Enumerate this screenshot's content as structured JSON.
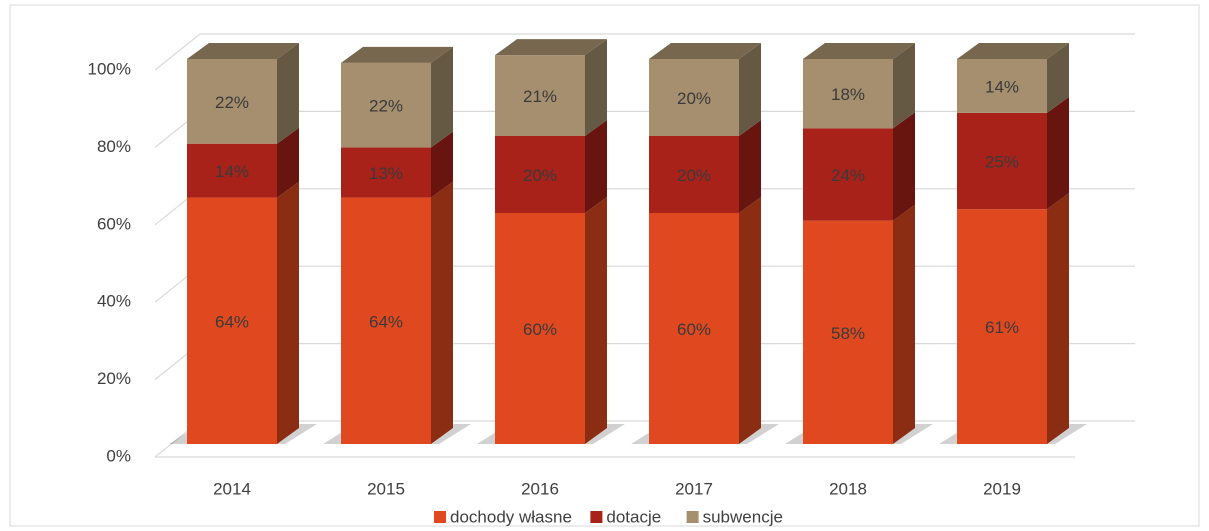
{
  "chart_data": {
    "type": "bar",
    "stacked": true,
    "categories": [
      "2014",
      "2015",
      "2016",
      "2017",
      "2018",
      "2019"
    ],
    "series": [
      {
        "name": "dochody własne",
        "color": "#e0491f",
        "values": [
          64,
          64,
          60,
          60,
          58,
          61
        ],
        "value_labels": [
          "64%",
          "64%",
          "60%",
          "60%",
          "58%",
          "61%"
        ]
      },
      {
        "name": "dotacje",
        "color": "#a82219",
        "values": [
          14,
          13,
          20,
          20,
          24,
          25
        ],
        "value_labels": [
          "14%",
          "13%",
          "20%",
          "20%",
          "24%",
          "25%"
        ]
      },
      {
        "name": "subwencje",
        "color": "#a58f6e",
        "values": [
          22,
          22,
          21,
          20,
          18,
          14
        ],
        "value_labels": [
          "22%",
          "22%",
          "21%",
          "20%",
          "18%",
          "14%"
        ]
      }
    ],
    "ylim": [
      0,
      100
    ],
    "yticks": [
      {
        "value": 0,
        "label": "0%"
      },
      {
        "value": 20,
        "label": "20%"
      },
      {
        "value": 40,
        "label": "40%"
      },
      {
        "value": 60,
        "label": "60%"
      },
      {
        "value": 80,
        "label": "80%"
      },
      {
        "value": 100,
        "label": "100%"
      }
    ],
    "grid": true,
    "legend": "bottom"
  }
}
